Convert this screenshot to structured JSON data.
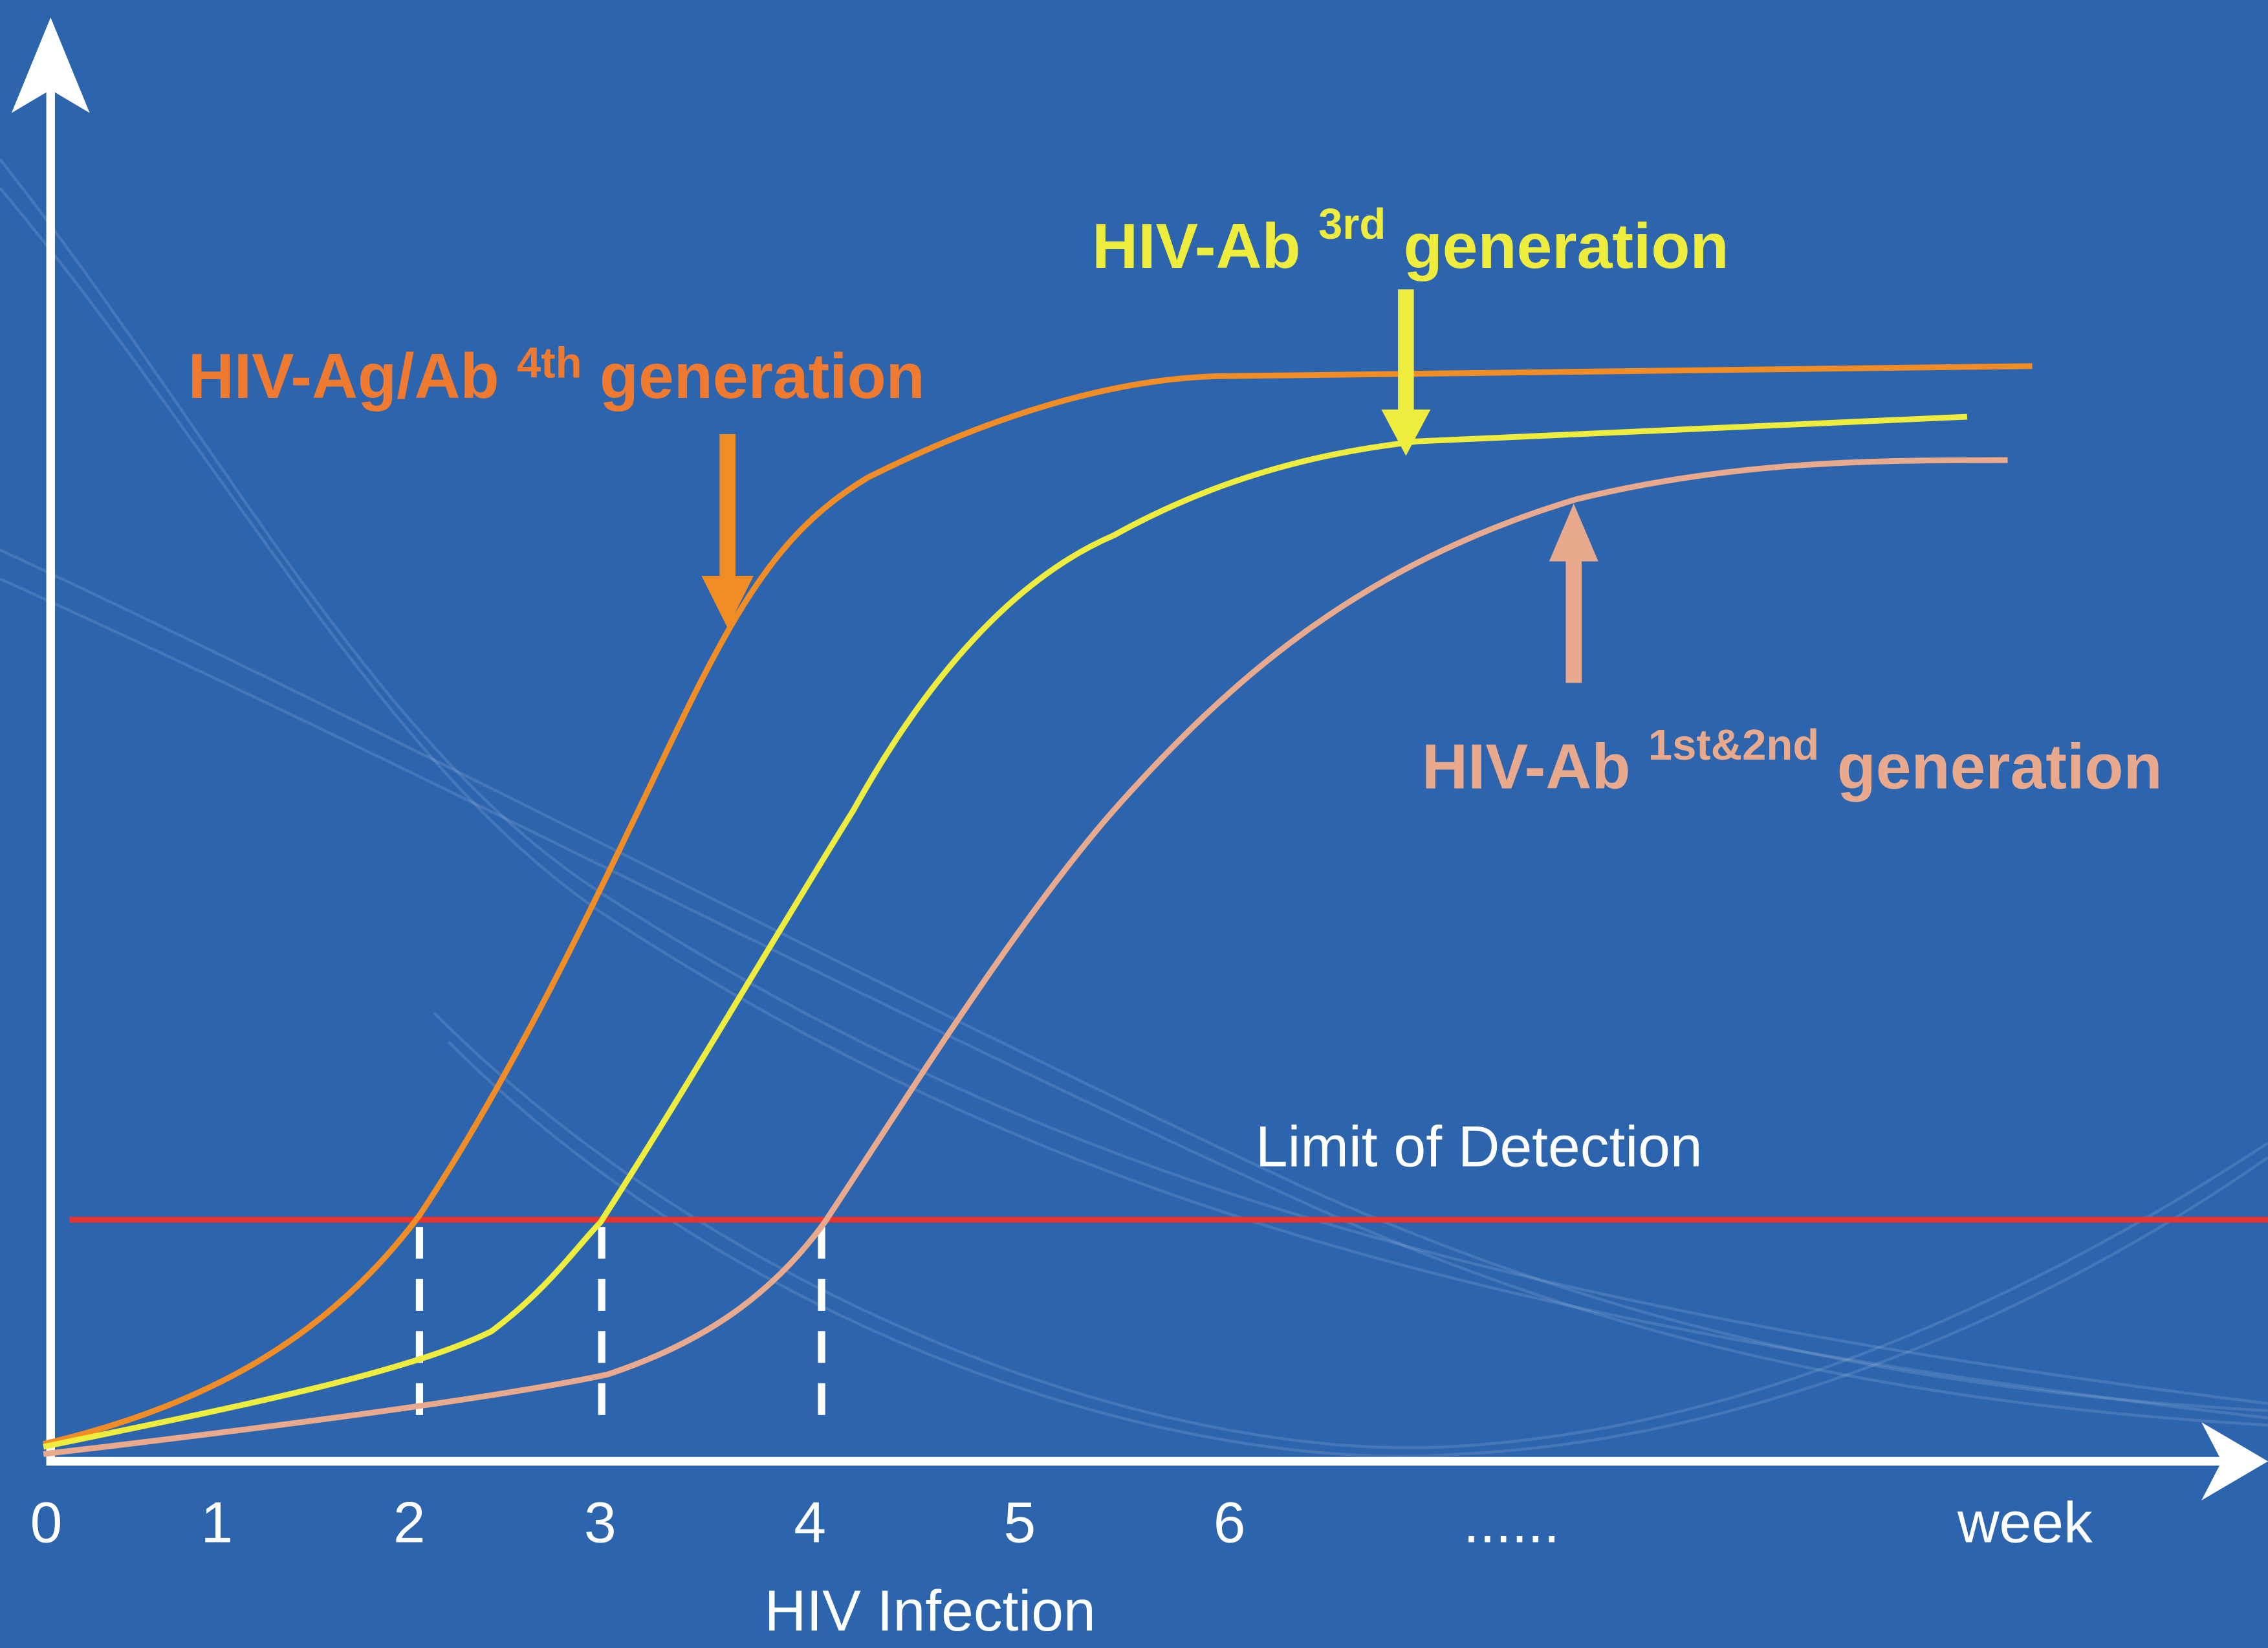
{
  "x_axis": {
    "labels": [
      "0",
      "1",
      "2",
      "3",
      "4",
      "5",
      "6",
      "......",
      "week"
    ],
    "title": "HIV Infection"
  },
  "limit_label": "Limit of Detection",
  "curves": [
    {
      "name": "HIV-Ag/Ab",
      "superscript": "4th",
      "suffix": "generation"
    },
    {
      "name": "HIV-Ab",
      "superscript": "3rd",
      "suffix": "generation"
    },
    {
      "name": "HIV-Ab",
      "superscript": "1st&2nd",
      "suffix": "generation"
    }
  ]
}
